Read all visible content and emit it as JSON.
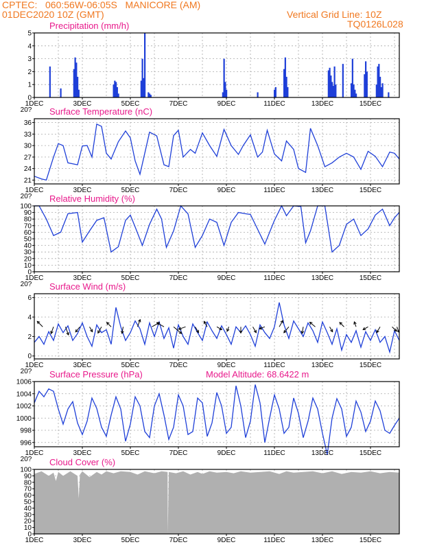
{
  "header": {
    "line1": "CPTEC:   060:56W-06:05S   MANICORE (AM)",
    "line2": "01DEC2020 10Z (GMT)",
    "right1": "Vertical Grid Line: 10Z",
    "right2": "TQ0126L028"
  },
  "colors": {
    "header": "#f07820",
    "panel_title": "#e8198b",
    "line": "#1e3fd8",
    "cloud": "#b0b0b0",
    "wind_arrow": "#000000"
  },
  "x_axis": {
    "tick_labels": [
      "1DEC",
      "3DEC",
      "5DEC",
      "7DEC",
      "9DEC",
      "11DEC",
      "13DEC",
      "15DEC"
    ],
    "tick_days": [
      0,
      2,
      4,
      6,
      8,
      10,
      12,
      14
    ],
    "range_days": [
      0,
      15.2
    ],
    "year_fragment": "20?"
  },
  "chart_data": [
    {
      "type": "bar",
      "title": "Precipitation (mm/h)",
      "ylim": [
        0,
        5
      ],
      "yticks": [
        0,
        1,
        2,
        3,
        4,
        5
      ],
      "x": [
        0.65,
        1.1,
        1.65,
        1.7,
        1.75,
        1.8,
        1.85,
        3.3,
        3.35,
        3.4,
        3.45,
        3.5,
        4.45,
        4.5,
        4.55,
        4.6,
        4.75,
        4.8,
        4.85,
        7.85,
        7.9,
        7.95,
        8.0,
        9.3,
        10.0,
        10.05,
        10.4,
        10.45,
        10.5,
        10.55,
        12.25,
        12.3,
        12.35,
        12.4,
        12.45,
        12.5,
        12.55,
        12.85,
        13.2,
        13.25,
        13.3,
        13.35,
        13.4,
        13.75,
        13.8,
        13.85,
        14.25,
        14.3,
        14.35,
        14.4,
        14.45,
        14.5,
        14.75
      ],
      "values": [
        2.4,
        0.7,
        2.2,
        3.1,
        2.7,
        1.6,
        0.6,
        1.0,
        1.3,
        1.2,
        0.8,
        0.3,
        1.3,
        3.0,
        1.5,
        5.0,
        0.4,
        0.3,
        0.2,
        0.4,
        3.0,
        1.2,
        0.6,
        0.4,
        0.6,
        0.8,
        2.2,
        3.1,
        1.6,
        0.8,
        2.1,
        2.3,
        1.7,
        1.2,
        0.9,
        2.4,
        1.0,
        2.6,
        1.1,
        3.0,
        1.0,
        0.6,
        0.3,
        1.8,
        2.8,
        2.0,
        1.0,
        2.4,
        2.6,
        1.6,
        0.8,
        1.1,
        0.4
      ]
    },
    {
      "type": "line",
      "title": "Surface Temperature (nC)",
      "ylim": [
        20,
        37
      ],
      "yticks": [
        21,
        24,
        27,
        30,
        33,
        36
      ],
      "x": [
        0,
        0.3,
        0.5,
        0.8,
        1.0,
        1.2,
        1.4,
        1.8,
        2.0,
        2.2,
        2.4,
        2.6,
        2.8,
        3.0,
        3.2,
        3.5,
        3.8,
        4.0,
        4.2,
        4.4,
        4.6,
        4.8,
        5.1,
        5.4,
        5.6,
        5.8,
        6.0,
        6.2,
        6.5,
        6.7,
        7.0,
        7.3,
        7.6,
        7.9,
        8.2,
        8.5,
        8.7,
        9.0,
        9.3,
        9.5,
        9.7,
        10.0,
        10.3,
        10.5,
        10.8,
        11.0,
        11.3,
        11.5,
        11.8,
        12.1,
        12.4,
        12.7,
        13.0,
        13.3,
        13.6,
        13.9,
        14.2,
        14.5,
        14.8,
        15.0,
        15.2
      ],
      "values": [
        22,
        21.3,
        21,
        27,
        30.5,
        30,
        25.5,
        25,
        29.9,
        30,
        27,
        35.6,
        35,
        28,
        26.5,
        31,
        33.8,
        32,
        26,
        22.5,
        28,
        33.5,
        32.5,
        25,
        24.5,
        32.6,
        34,
        27,
        29,
        28,
        33.3,
        30,
        27.2,
        34.2,
        30,
        27.7,
        30,
        32.8,
        27,
        28.3,
        34,
        27.8,
        26,
        31.2,
        29,
        24,
        23,
        34.5,
        30,
        24.5,
        25.5,
        27,
        28,
        27,
        23.8,
        28.5,
        27.2,
        24.5,
        28.3,
        28,
        26.5
      ]
    },
    {
      "type": "line",
      "title": "Relative Humidity (%)",
      "ylim": [
        0,
        100
      ],
      "yticks": [
        0,
        10,
        20,
        30,
        40,
        50,
        60,
        70,
        80,
        90,
        100
      ],
      "x": [
        0,
        0.2,
        0.5,
        0.8,
        1.1,
        1.4,
        1.8,
        2.0,
        2.3,
        2.6,
        2.9,
        3.2,
        3.5,
        3.8,
        4.0,
        4.2,
        4.5,
        4.8,
        5.1,
        5.3,
        5.5,
        5.8,
        6.1,
        6.4,
        6.7,
        7.0,
        7.3,
        7.6,
        7.9,
        8.2,
        8.5,
        8.8,
        9.0,
        9.2,
        9.6,
        10.0,
        10.3,
        10.5,
        10.8,
        11.1,
        11.3,
        11.5,
        11.8,
        12.1,
        12.4,
        12.7,
        13.0,
        13.3,
        13.6,
        13.9,
        14.2,
        14.5,
        14.8,
        15.0,
        15.2
      ],
      "values": [
        100,
        100,
        80,
        55,
        60,
        88,
        90,
        45,
        62,
        78,
        82,
        30,
        38,
        78,
        86,
        68,
        40,
        72,
        95,
        80,
        37,
        62,
        100,
        88,
        37,
        55,
        80,
        75,
        40,
        75,
        90,
        88,
        87,
        72,
        42,
        78,
        100,
        85,
        100,
        99,
        44,
        62,
        100,
        100,
        30,
        40,
        72,
        80,
        55,
        65,
        86,
        95,
        70,
        82,
        90
      ]
    },
    {
      "type": "line",
      "title": "Surface Wind (m/s)",
      "ylim": [
        -0.3,
        6.4
      ],
      "yticks": [
        0,
        2,
        4,
        6
      ],
      "x": [
        0,
        0.2,
        0.4,
        0.6,
        0.8,
        1.0,
        1.2,
        1.4,
        1.6,
        1.8,
        2.0,
        2.2,
        2.4,
        2.6,
        2.8,
        3.0,
        3.2,
        3.4,
        3.6,
        3.8,
        4.0,
        4.2,
        4.4,
        4.6,
        4.8,
        5.0,
        5.2,
        5.4,
        5.6,
        5.8,
        6.0,
        6.2,
        6.4,
        6.6,
        6.8,
        7.0,
        7.2,
        7.4,
        7.6,
        7.8,
        8.0,
        8.2,
        8.4,
        8.6,
        8.8,
        9.0,
        9.2,
        9.4,
        9.6,
        9.8,
        10.0,
        10.2,
        10.4,
        10.6,
        10.8,
        11.0,
        11.2,
        11.4,
        11.6,
        11.8,
        12.0,
        12.2,
        12.4,
        12.6,
        12.8,
        13.0,
        13.2,
        13.4,
        13.6,
        13.8,
        14.0,
        14.2,
        14.4,
        14.6,
        14.8,
        15.0,
        15.2
      ],
      "values": [
        1.4,
        2.0,
        1.2,
        2.5,
        1.6,
        3.3,
        2.4,
        3.1,
        1.6,
        2.3,
        3.4,
        2.0,
        1.0,
        3.2,
        2.4,
        2.7,
        1.2,
        5.0,
        3.0,
        1.6,
        2.4,
        3.6,
        2.8,
        1.2,
        3.4,
        2.0,
        3.5,
        1.8,
        2.9,
        0.8,
        3.2,
        2.0,
        1.2,
        3.3,
        2.4,
        1.6,
        3.5,
        2.6,
        1.8,
        3.1,
        2.2,
        1.2,
        3.0,
        2.4,
        3.1,
        2.2,
        1.0,
        3.2,
        2.4,
        1.8,
        3.0,
        5.5,
        3.2,
        1.8,
        3.6,
        2.8,
        2.0,
        3.4,
        2.6,
        1.4,
        3.5,
        2.4,
        1.2,
        2.8,
        0.6,
        2.2,
        1.4,
        2.6,
        0.9,
        2.5,
        1.6,
        2.7,
        1.4,
        2.0,
        0.4,
        2.6,
        1.6
      ]
    },
    {
      "type": "line",
      "title": "Surface Pressure (hPa)",
      "annotation": "Model Altitude: 68.6422 m",
      "ylim": [
        995.3,
        1006
      ],
      "yticks": [
        996,
        998,
        1000,
        1002,
        1004,
        1006
      ],
      "x": [
        0,
        0.2,
        0.4,
        0.6,
        0.8,
        1.0,
        1.2,
        1.4,
        1.6,
        1.8,
        2.0,
        2.2,
        2.4,
        2.6,
        2.8,
        3.0,
        3.2,
        3.4,
        3.6,
        3.8,
        4.0,
        4.2,
        4.4,
        4.6,
        4.8,
        5.0,
        5.2,
        5.4,
        5.6,
        5.8,
        6.0,
        6.2,
        6.4,
        6.6,
        6.8,
        7.0,
        7.2,
        7.4,
        7.6,
        7.8,
        8.0,
        8.2,
        8.4,
        8.6,
        8.8,
        9.0,
        9.2,
        9.4,
        9.6,
        9.8,
        10.0,
        10.2,
        10.4,
        10.6,
        10.8,
        11.0,
        11.2,
        11.4,
        11.6,
        11.8,
        12.0,
        12.2,
        12.4,
        12.6,
        12.8,
        13.0,
        13.2,
        13.4,
        13.6,
        13.8,
        14.0,
        14.2,
        14.4,
        14.6,
        14.8,
        15.0,
        15.2
      ],
      "values": [
        1002.5,
        1004.4,
        1003.5,
        1004.8,
        1004.4,
        1001.5,
        999.0,
        1001.5,
        1002.7,
        999.2,
        997.3,
        999.5,
        1003.3,
        1001.6,
        998.5,
        997.0,
        1000.5,
        1003.5,
        1001.5,
        996.2,
        999.0,
        1003.5,
        1002.0,
        997.8,
        996.8,
        1002.0,
        1004.0,
        1000.5,
        996.5,
        998.5,
        1003.8,
        1002.0,
        997.3,
        997.8,
        1003.3,
        1002.5,
        997.0,
        999.2,
        1004.2,
        1002.0,
        997.5,
        998.5,
        1005.3,
        1002.0,
        996.8,
        999.5,
        1005.5,
        1002.5,
        996.0,
        1000.0,
        1003.8,
        1001.5,
        997.5,
        998.5,
        1003.3,
        1000.8,
        996.8,
        999.5,
        1003.3,
        1001.5,
        997.5,
        994.0,
        1000.0,
        1003.2,
        1001.5,
        997.0,
        998.5,
        1002.8,
        1001.0,
        997.8,
        999.5,
        1002.8,
        1001.2,
        998.0,
        997.5,
        998.8,
        1000.0
      ]
    },
    {
      "type": "area",
      "title": "Cloud Cover (%)",
      "ylim": [
        0,
        100
      ],
      "yticks": [
        0,
        10,
        20,
        30,
        40,
        50,
        60,
        70,
        80,
        90,
        100
      ],
      "x": [
        0,
        0.3,
        0.6,
        0.8,
        0.9,
        1.0,
        1.2,
        1.5,
        1.8,
        1.85,
        1.9,
        2.0,
        2.3,
        2.6,
        2.8,
        3.0,
        3.3,
        3.6,
        4.0,
        4.3,
        4.6,
        5.0,
        5.3,
        5.55,
        5.56,
        5.6,
        5.9,
        6.2,
        6.5,
        6.8,
        7.0,
        7.3,
        7.6,
        8.0,
        8.3,
        8.6,
        9.0,
        9.4,
        9.8,
        10.2,
        10.5,
        10.8,
        11.2,
        11.6,
        12.0,
        12.4,
        12.8,
        13.2,
        13.6,
        14.0,
        14.4,
        14.8,
        15.2
      ],
      "values": [
        93,
        97,
        90,
        95,
        82,
        96,
        90,
        97,
        90,
        55,
        92,
        97,
        88,
        96,
        92,
        97,
        94,
        97,
        96,
        92,
        97,
        94,
        97,
        96,
        1,
        96,
        94,
        97,
        92,
        96,
        93,
        97,
        95,
        96,
        94,
        97,
        95,
        96,
        97,
        93,
        97,
        95,
        96,
        97,
        94,
        97,
        93,
        96,
        95,
        97,
        94,
        96,
        95
      ]
    }
  ],
  "wind_arrows": {
    "x": [
      0.35,
      0.8,
      1.3,
      1.9,
      2.3,
      2.8,
      3.2,
      3.7,
      4.3,
      4.9,
      5.4,
      5.8,
      6.3,
      6.7,
      7.2,
      7.6,
      8.1,
      8.6,
      9.1,
      9.6,
      10.2,
      10.6,
      11.2,
      11.7,
      12.3,
      12.9,
      13.4,
      13.9,
      14.4,
      14.9,
      15.1
    ],
    "speed": [
      1.6,
      1.5,
      1.8,
      1.4,
      1.2,
      1.5,
      1.3,
      1.4,
      1.6,
      1.8,
      1.7,
      2.2,
      1.5,
      1.4,
      1.3,
      1.2,
      1.0,
      1.3,
      1.4,
      1.2,
      1.5,
      1.6,
      1.4,
      1.5,
      1.2,
      1.3,
      1.1,
      1.2,
      1.4,
      1.3,
      1.2
    ],
    "dir_deg": [
      135,
      250,
      290,
      230,
      300,
      240,
      135,
      260,
      70,
      30,
      150,
      320,
      200,
      300,
      120,
      330,
      250,
      270,
      300,
      200,
      60,
      230,
      260,
      140,
      300,
      135,
      110,
      210,
      240,
      315,
      290
    ]
  }
}
